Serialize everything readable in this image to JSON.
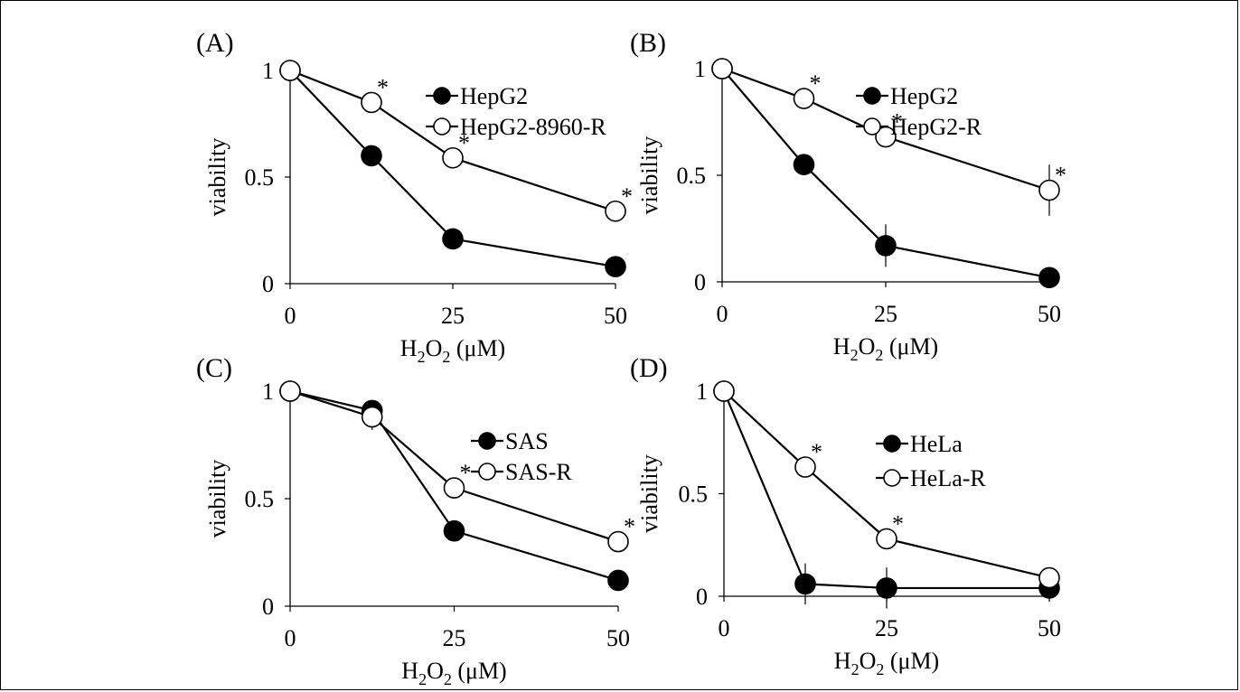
{
  "colors": {
    "ink": "#000000",
    "background": "#ffffff",
    "filled_marker": "#000000",
    "open_marker": "#ffffff"
  },
  "chart_data": [
    {
      "type": "line",
      "panel_label": "(A)",
      "xlabel_main": "H",
      "xlabel_sub1": "2",
      "xlabel_mid": "O",
      "xlabel_sub2": "2",
      "xlabel_unit": " (μM)",
      "ylabel": "viability",
      "xlim": [
        0,
        50
      ],
      "ylim": [
        0,
        1
      ],
      "xticks": [
        {
          "value": 0,
          "label": "0"
        },
        {
          "value": 25,
          "label": "25"
        },
        {
          "value": 50,
          "label": "50"
        }
      ],
      "yticks": [
        {
          "value": 0,
          "label": "0"
        },
        {
          "value": 0.5,
          "label": "0.5"
        },
        {
          "value": 1,
          "label": "1"
        }
      ],
      "legend_position": "top-right",
      "significance_mark": "*",
      "series": [
        {
          "name": "HepG2",
          "marker": "filled",
          "x": [
            0,
            12.5,
            25,
            50
          ],
          "y": [
            1.0,
            0.6,
            0.21,
            0.08
          ],
          "err": [
            0,
            0,
            0,
            0
          ],
          "significant": [
            false,
            false,
            false,
            false
          ]
        },
        {
          "name": "HepG2-8960-R",
          "marker": "open",
          "x": [
            0,
            12.5,
            25,
            50
          ],
          "y": [
            1.0,
            0.85,
            0.59,
            0.34
          ],
          "err": [
            0,
            0.04,
            0.05,
            0
          ],
          "significant": [
            false,
            true,
            true,
            true
          ]
        }
      ]
    },
    {
      "type": "line",
      "panel_label": "(B)",
      "xlabel_main": "H",
      "xlabel_sub1": "2",
      "xlabel_mid": "O",
      "xlabel_sub2": "2",
      "xlabel_unit": " (μM)",
      "ylabel": "viability",
      "xlim": [
        0,
        50
      ],
      "ylim": [
        0,
        1
      ],
      "xticks": [
        {
          "value": 0,
          "label": "0"
        },
        {
          "value": 25,
          "label": "25"
        },
        {
          "value": 50,
          "label": "50"
        }
      ],
      "yticks": [
        {
          "value": 0,
          "label": "0"
        },
        {
          "value": 0.5,
          "label": "0.5"
        },
        {
          "value": 1,
          "label": "1"
        }
      ],
      "legend_position": "top-right",
      "significance_mark": "*",
      "series": [
        {
          "name": "HepG2",
          "marker": "filled",
          "x": [
            0,
            12.5,
            25,
            50
          ],
          "y": [
            1.0,
            0.55,
            0.17,
            0.02
          ],
          "err": [
            0,
            0,
            0.1,
            0
          ],
          "significant": [
            false,
            false,
            false,
            false
          ]
        },
        {
          "name": "HepG2-R",
          "marker": "open",
          "x": [
            0,
            12.5,
            25,
            50
          ],
          "y": [
            1.0,
            0.86,
            0.68,
            0.43
          ],
          "err": [
            0,
            0,
            0.03,
            0.12
          ],
          "significant": [
            false,
            true,
            true,
            true
          ]
        }
      ]
    },
    {
      "type": "line",
      "panel_label": "(C)",
      "xlabel_main": "H",
      "xlabel_sub1": "2",
      "xlabel_mid": "O",
      "xlabel_sub2": "2",
      "xlabel_unit": " (μM)",
      "ylabel": "viability",
      "xlim": [
        0,
        50
      ],
      "ylim": [
        0,
        1
      ],
      "xticks": [
        {
          "value": 0,
          "label": "0"
        },
        {
          "value": 25,
          "label": "25"
        },
        {
          "value": 50,
          "label": "50"
        }
      ],
      "yticks": [
        {
          "value": 0,
          "label": "0"
        },
        {
          "value": 0.5,
          "label": "0.5"
        },
        {
          "value": 1,
          "label": "1"
        }
      ],
      "legend_position": "center-right",
      "significance_mark": "*",
      "series": [
        {
          "name": "SAS",
          "marker": "filled",
          "x": [
            0,
            12.5,
            25,
            50
          ],
          "y": [
            1.0,
            0.91,
            0.35,
            0.12
          ],
          "err": [
            0,
            0,
            0,
            0
          ],
          "significant": [
            false,
            false,
            false,
            false
          ]
        },
        {
          "name": "SAS-R",
          "marker": "open",
          "x": [
            0,
            12.5,
            25,
            50
          ],
          "y": [
            1.0,
            0.88,
            0.55,
            0.3
          ],
          "err": [
            0,
            0.06,
            0,
            0
          ],
          "significant": [
            false,
            false,
            true,
            true
          ]
        }
      ]
    },
    {
      "type": "line",
      "panel_label": "(D)",
      "xlabel_main": "H",
      "xlabel_sub1": "2",
      "xlabel_mid": "O",
      "xlabel_sub2": "2",
      "xlabel_unit": " (μM)",
      "ylabel": "viability",
      "xlim": [
        0,
        50
      ],
      "ylim": [
        0,
        1
      ],
      "xticks": [
        {
          "value": 0,
          "label": "0"
        },
        {
          "value": 25,
          "label": "25"
        },
        {
          "value": 50,
          "label": "50"
        }
      ],
      "yticks": [
        {
          "value": 0,
          "label": "0"
        },
        {
          "value": 0.5,
          "label": "0.5"
        },
        {
          "value": 1,
          "label": "1"
        }
      ],
      "legend_position": "top-right",
      "significance_mark": "*",
      "series": [
        {
          "name": "HeLa",
          "marker": "filled",
          "x": [
            0,
            12.5,
            25,
            50
          ],
          "y": [
            1.0,
            0.06,
            0.04,
            0.04
          ],
          "err": [
            0,
            0.1,
            0.1,
            0
          ],
          "significant": [
            false,
            false,
            false,
            false
          ]
        },
        {
          "name": "HeLa-R",
          "marker": "open",
          "x": [
            0,
            12.5,
            25,
            50
          ],
          "y": [
            1.0,
            0.63,
            0.28,
            0.09
          ],
          "err": [
            0,
            0,
            0,
            0
          ],
          "significant": [
            false,
            true,
            true,
            false
          ]
        }
      ]
    }
  ]
}
